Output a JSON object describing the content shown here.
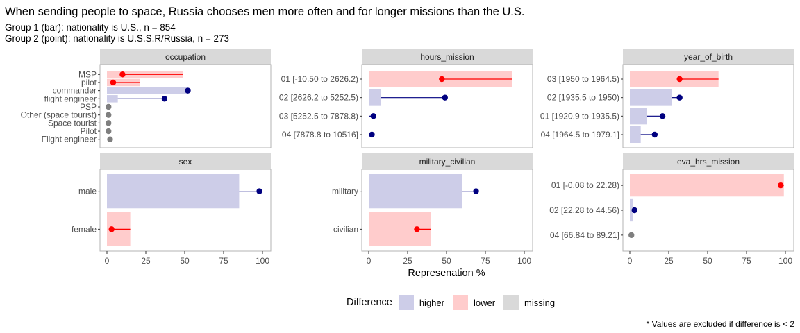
{
  "title": "When sending people to space, Russia chooses men more often and for longer missions than the U.S.",
  "subtitle_line1": "Group 1 (bar): nationality is U.S., n = 854",
  "subtitle_line2": "Group 2 (point): nationality is U.S.S.R/Russia, n = 273",
  "caption": "* Values are excluded if difference is < 2",
  "legend": {
    "title": "Difference",
    "items": [
      {
        "key": "higher",
        "label": "higher",
        "color": "#cdcde8"
      },
      {
        "key": "lower",
        "label": "lower",
        "color": "#ffcccc"
      },
      {
        "key": "missing",
        "label": "missing",
        "color": "#d9d9d9"
      }
    ]
  },
  "colors": {
    "higher_bar": "#cdcde8",
    "lower_bar": "#ffcccc",
    "missing_bar": "#d9d9d9",
    "higher_point": "#000080",
    "lower_point": "#ff0000",
    "missing_point": "#7f7f7f",
    "strip": "#d9d9d9",
    "border": "#b3b3b3"
  },
  "chart_data": {
    "type": "bar",
    "description_axis": "Represenation %",
    "xlim": [
      0,
      100
    ],
    "x_ticks": [
      0,
      25,
      50,
      75,
      100
    ],
    "grid": false,
    "legend_position": "bottom",
    "panels": [
      {
        "facet": "occupation",
        "categories": [
          "MSP",
          "pilot",
          "commander",
          "flight engineer",
          "PSP",
          "Other (space tourist)",
          "Space tourist",
          "Pilot",
          "Flight engineer"
        ],
        "group1_bar": [
          49,
          21,
          52,
          7,
          0,
          0,
          0,
          0,
          0
        ],
        "group2_point": [
          10,
          4,
          52,
          37,
          1,
          1,
          1,
          1,
          2
        ],
        "difference": [
          "lower",
          "lower",
          "higher",
          "higher",
          "missing",
          "missing",
          "missing",
          "missing",
          "missing"
        ]
      },
      {
        "facet": "hours_mission",
        "categories": [
          "01 [-10.50 to 2626.2)",
          "02 [2626.2 to 5252.5)",
          "03 [5252.5 to 7878.8)",
          "04 [7878.8 to 10516]"
        ],
        "group1_bar": [
          92,
          8,
          0,
          0
        ],
        "group2_point": [
          47,
          49,
          3,
          2
        ],
        "difference": [
          "lower",
          "higher",
          "higher",
          "higher"
        ]
      },
      {
        "facet": "year_of_birth",
        "categories": [
          "03 [1950 to 1964.5)",
          "02 [1935.5 to 1950)",
          "01 [1920.9 to 1935.5)",
          "04 [1964.5 to 1979.1]"
        ],
        "group1_bar": [
          57,
          27,
          11,
          7
        ],
        "group2_point": [
          32,
          32,
          21,
          16
        ],
        "difference": [
          "lower",
          "higher",
          "higher",
          "higher"
        ]
      },
      {
        "facet": "sex",
        "categories": [
          "male",
          "female"
        ],
        "group1_bar": [
          85,
          15
        ],
        "group2_point": [
          98,
          3
        ],
        "difference": [
          "higher",
          "lower"
        ]
      },
      {
        "facet": "military_civilian",
        "categories": [
          "military",
          "civilian"
        ],
        "group1_bar": [
          60,
          40
        ],
        "group2_point": [
          69,
          31
        ],
        "difference": [
          "higher",
          "lower"
        ]
      },
      {
        "facet": "eva_hrs_mission",
        "categories": [
          "01 [-0.08 to 22.28)",
          "02 [22.28 to 44.56)",
          "04 [66.84 to 89.21]"
        ],
        "group1_bar": [
          99,
          2,
          0
        ],
        "group2_point": [
          97,
          3,
          1
        ],
        "difference": [
          "lower",
          "higher",
          "missing"
        ]
      }
    ]
  }
}
